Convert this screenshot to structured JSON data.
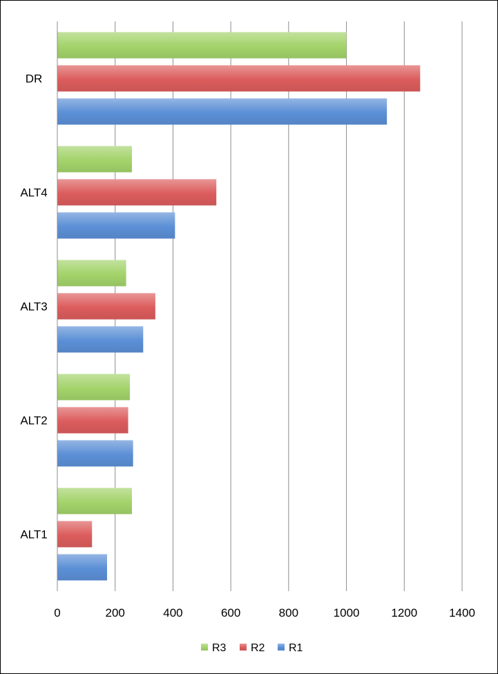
{
  "chart_data": {
    "type": "bar",
    "orientation": "horizontal",
    "categories": [
      "ALT1",
      "ALT2",
      "ALT3",
      "ALT4",
      "DR"
    ],
    "series": [
      {
        "name": "R1",
        "color": "#5b8fd6",
        "values": [
          172,
          262,
          297,
          407,
          1140
        ]
      },
      {
        "name": "R2",
        "color": "#dc5c5c",
        "values": [
          120,
          245,
          339,
          550,
          1255
        ]
      },
      {
        "name": "R3",
        "color": "#a3d36a",
        "values": [
          258,
          251,
          238,
          258,
          1000
        ]
      }
    ],
    "xlim": [
      0,
      1400
    ],
    "xticks": [
      0,
      200,
      400,
      600,
      800,
      1000,
      1200,
      1400
    ],
    "grid": true,
    "legend_position": "bottom",
    "legend_order": [
      "R3",
      "R2",
      "R1"
    ]
  }
}
